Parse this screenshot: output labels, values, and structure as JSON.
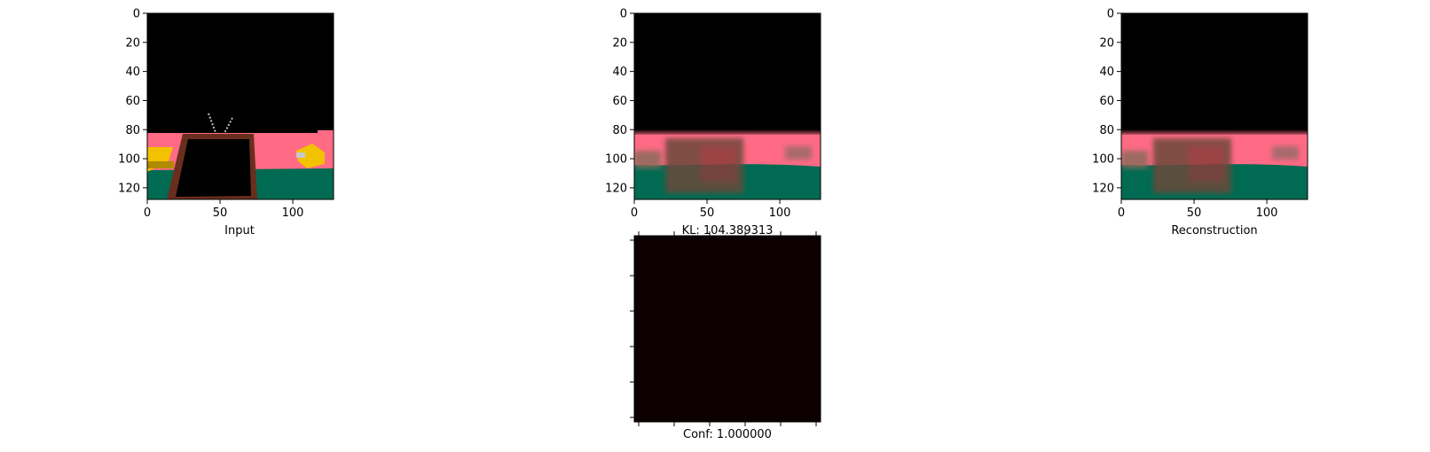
{
  "chart_data": [
    {
      "type": "image",
      "id": "input",
      "xlabel": "Input",
      "title": "",
      "xlim": [
        0,
        128
      ],
      "ylim": [
        0,
        128
      ],
      "xticks": [
        0,
        50,
        100
      ],
      "yticks": [
        0,
        20,
        40,
        60,
        80,
        100,
        120
      ],
      "tick_labels_shown": true,
      "y_inverted": true
    },
    {
      "type": "image",
      "id": "middle",
      "xlabel": "KL: 104.389313",
      "title": "",
      "xlim": [
        0,
        128
      ],
      "ylim": [
        0,
        128
      ],
      "xticks": [
        0,
        50,
        100
      ],
      "yticks": [
        0,
        20,
        40,
        60,
        80,
        100,
        120
      ],
      "tick_labels_shown": true,
      "y_inverted": true
    },
    {
      "type": "image",
      "id": "reconstruction",
      "xlabel": "Reconstruction",
      "title": "",
      "xlim": [
        0,
        128
      ],
      "ylim": [
        0,
        128
      ],
      "xticks": [
        0,
        50,
        100
      ],
      "yticks": [
        0,
        20,
        40,
        60,
        80,
        100,
        120
      ],
      "tick_labels_shown": true,
      "y_inverted": true
    },
    {
      "type": "heatmap",
      "id": "confidence",
      "xlabel": "Conf: 1.000000",
      "title": "",
      "tick_labels_shown": false,
      "x_tick_count": 6,
      "y_tick_count": 6,
      "fill_color": "#0d0000"
    }
  ],
  "colors": {
    "sky": "#000000",
    "wall": "#ff6a85",
    "floor": "#006b52",
    "tv_frame": "#6a2e1e",
    "yellow_object": "#f2c200"
  }
}
